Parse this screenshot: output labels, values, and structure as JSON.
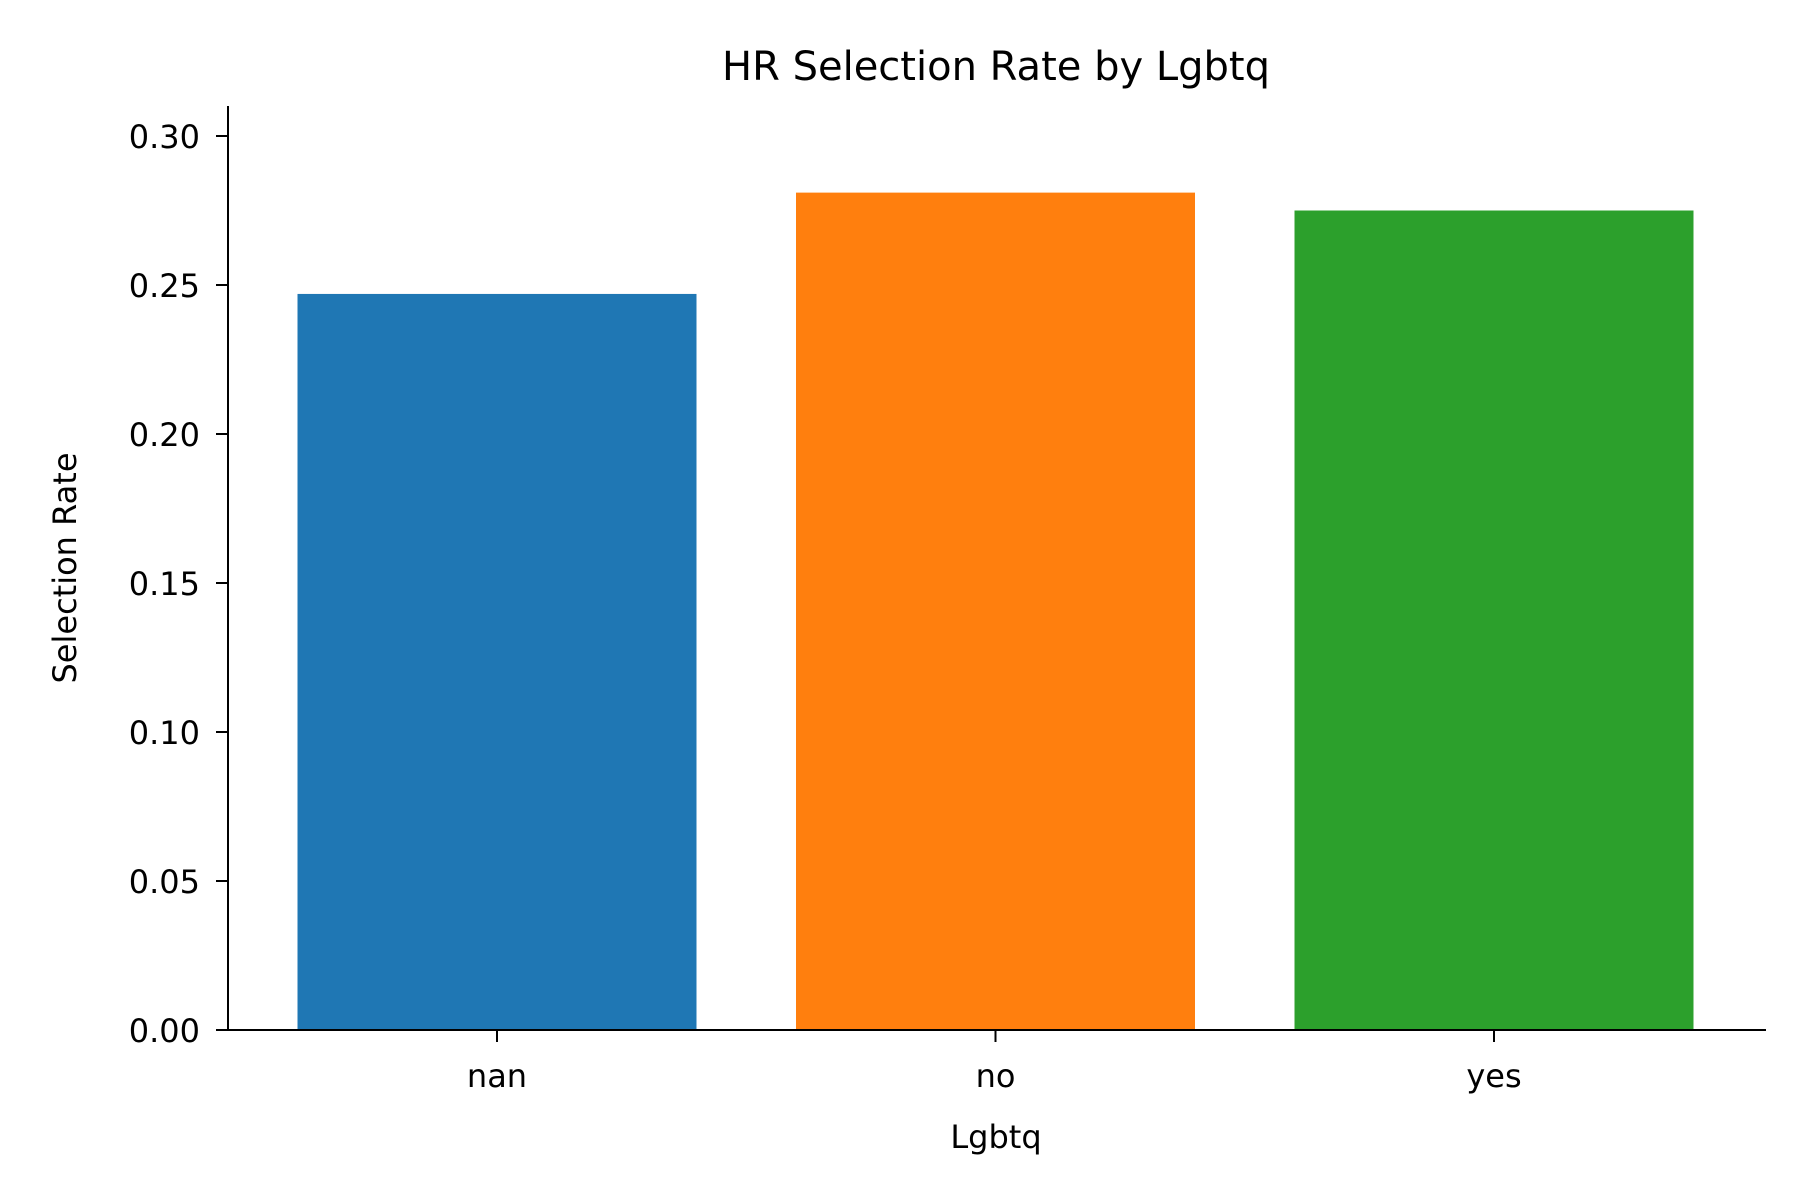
{
  "chart_data": {
    "type": "bar",
    "title": "HR Selection Rate by Lgbtq",
    "xlabel": "Lgbtq",
    "ylabel": "Selection Rate",
    "categories": [
      "nan",
      "no",
      "yes"
    ],
    "values": [
      0.247,
      0.281,
      0.275
    ],
    "colors": [
      "#1f77b4",
      "#ff7f0e",
      "#2ca02c"
    ],
    "ylim": [
      0,
      0.31
    ],
    "yticks": [
      0.0,
      0.05,
      0.1,
      0.15,
      0.2,
      0.25,
      0.3
    ],
    "ytick_labels": [
      "0.00",
      "0.05",
      "0.10",
      "0.15",
      "0.20",
      "0.25",
      "0.30"
    ],
    "grid": false,
    "legend": "none"
  }
}
